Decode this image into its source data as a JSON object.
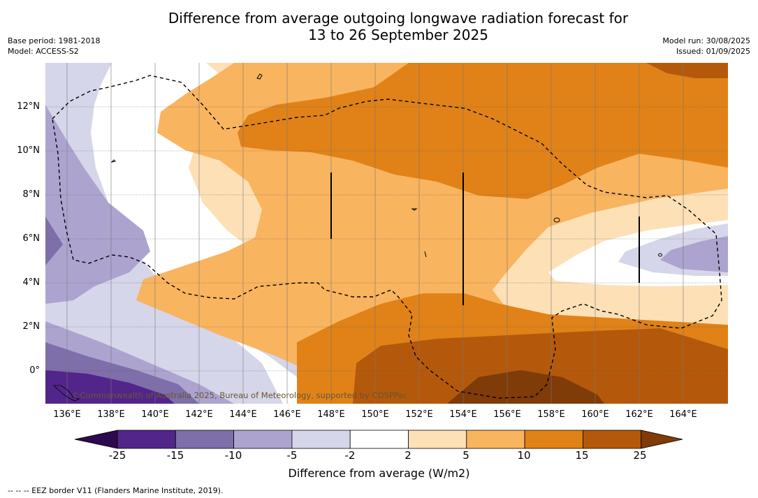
{
  "title_line1": "Difference from average outgoing longwave radiation forecast for",
  "title_line2": "13 to 26 September 2025",
  "base_period": "Base period: 1981-2018",
  "model": "Model: ACCESS-S2",
  "model_run": "Model run: 30/08/2025",
  "issued": "Issued: 01/09/2025",
  "copyright": "©Commonwealth of Australia 2025, Bureau of Meteorology, supported by COSPPac",
  "lat_labels": [
    "12°N",
    "10°N",
    "8°N",
    "6°N",
    "4°N",
    "2°N",
    "0°"
  ],
  "lon_labels": [
    "136°E",
    "138°E",
    "140°E",
    "142°E",
    "144°E",
    "146°E",
    "148°E",
    "150°E",
    "152°E",
    "154°E",
    "156°E",
    "158°E",
    "160°E",
    "162°E",
    "164°E"
  ],
  "colorbar": {
    "label": "Difference from average (W/m2)",
    "ticks": [
      "-25",
      "-15",
      "-10",
      "-5",
      "-2",
      "2",
      "5",
      "10",
      "15",
      "25"
    ],
    "colors": [
      "#52258a",
      "#7e6eaa",
      "#aca4cf",
      "#d6d6ea",
      "#ffffff",
      "#fde0b6",
      "#f9b45f",
      "#e08218",
      "#b4590b"
    ],
    "under_color": "#2d0a4f",
    "over_color": "#7f3b08"
  },
  "legend_note": "--  --  -- EEZ border V11 (Flanders Marine Institute, 2019)."
}
